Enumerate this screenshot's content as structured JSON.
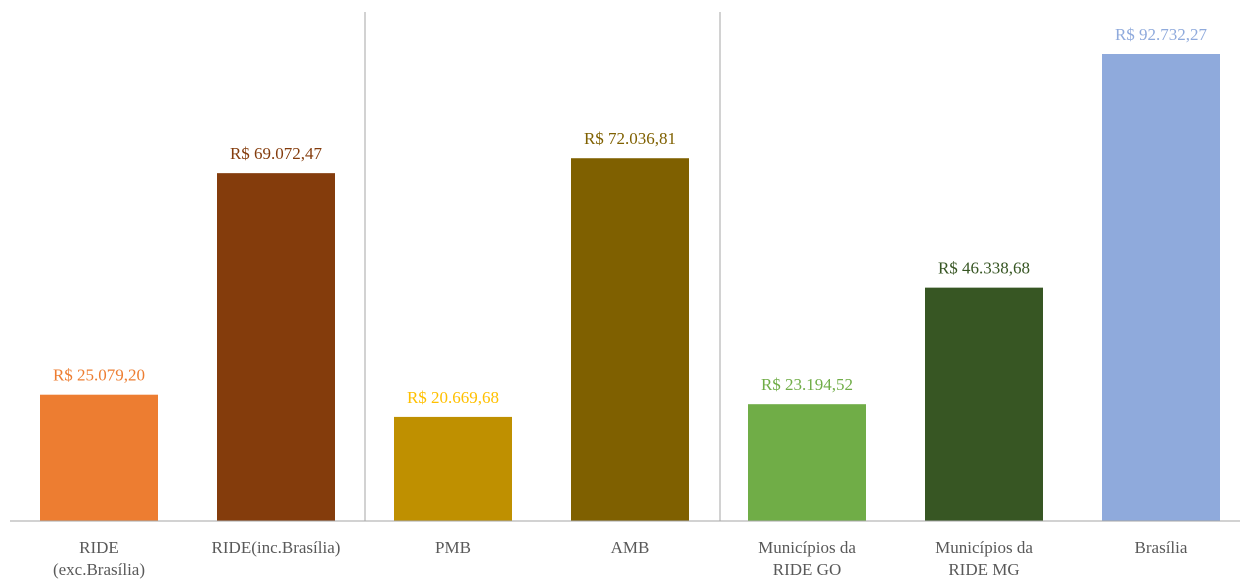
{
  "chart_data": {
    "type": "bar",
    "categories": [
      "RIDE\n(exc.Brasília)",
      "RIDE(inc.Brasília)",
      "PMB",
      "AMB",
      "Municípios da\nRIDE GO",
      "Municípios da\nRIDE MG",
      "Brasília"
    ],
    "values": [
      25079.2,
      69072.47,
      20669.68,
      72036.81,
      23194.52,
      46338.68,
      92732.27
    ],
    "value_labels": [
      "R$ 25.079,20",
      "R$ 69.072,47",
      "R$ 20.669,68",
      "R$ 72.036,81",
      "R$ 23.194,52",
      "R$ 46.338,68",
      "R$ 92.732,27"
    ],
    "colors": [
      "#ed7d31",
      "#843c0c",
      "#bf9000",
      "#7f6000",
      "#70ad47",
      "#375623",
      "#8faadc"
    ],
    "label_colors": [
      "#ed7d31",
      "#843c0c",
      "#ffc000",
      "#7f6000",
      "#70ad47",
      "#375623",
      "#8faadc"
    ]
  }
}
